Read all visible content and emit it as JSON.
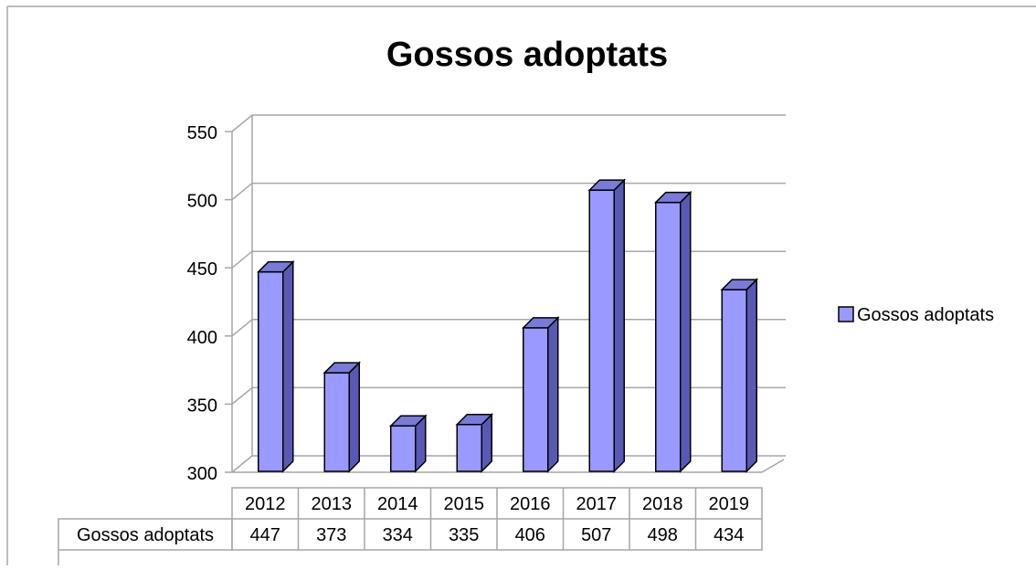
{
  "chart_data": {
    "type": "bar",
    "title": "Gossos adoptats",
    "categories": [
      "2012",
      "2013",
      "2014",
      "2015",
      "2016",
      "2017",
      "2018",
      "2019"
    ],
    "series": [
      {
        "name": "Gossos adoptats",
        "values": [
          447,
          373,
          334,
          335,
          406,
          507,
          498,
          434
        ]
      }
    ],
    "ylim": [
      300,
      550
    ],
    "yticks": [
      300,
      350,
      400,
      450,
      500,
      550
    ],
    "grid": true,
    "legend_position": "right",
    "data_table": true,
    "style": "3d-column"
  },
  "colors": {
    "bar_front": "#9999ff",
    "bar_side": "#5959b3",
    "bar_top": "#7a7ad9",
    "grid": "#a6a6a6",
    "text": "#000000"
  }
}
